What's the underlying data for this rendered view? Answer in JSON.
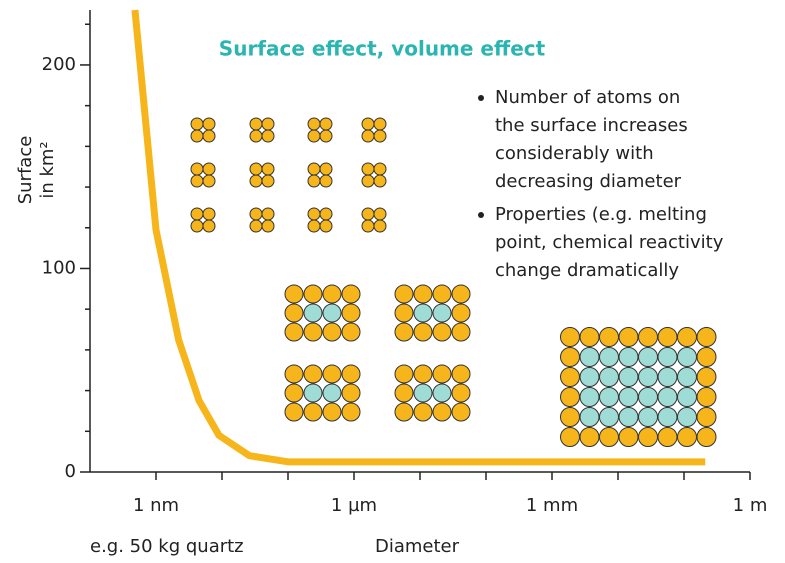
{
  "chart_data": {
    "type": "line",
    "title": "Surface effect, volume effect",
    "y_label": [
      "Surface",
      "in km²"
    ],
    "x_label": "Diameter",
    "x_note": "e.g. 50 kg quartz",
    "annotations": [
      [
        "Number of atoms on",
        "the surface increases",
        "considerably with",
        "decreasing diameter"
      ],
      [
        "Properties (e.g. melting",
        "point, chemical reactivity",
        "change dramatically"
      ]
    ],
    "x_log": true,
    "xlim": [
      1e-10,
      1
    ],
    "ylim": [
      0,
      227
    ],
    "xticks": [
      {
        "value": 1e-09,
        "label": "1 nm"
      },
      {
        "value": 1e-06,
        "label": "1 µm"
      },
      {
        "value": 0.001,
        "label": "1 mm"
      },
      {
        "value": 1,
        "label": "1 m"
      }
    ],
    "xminorticks": [
      1e-08,
      1e-07,
      1e-05,
      0.0001,
      0.01,
      0.1
    ],
    "yticks": [
      0,
      100,
      200
    ],
    "yminorticks": [
      20,
      40,
      60,
      80,
      120,
      140,
      160,
      180,
      220
    ],
    "series": [
      {
        "color": "#f7b51c",
        "x": [
          4.8e-10,
          1e-09,
          2.2e-09,
          4.5e-09,
          9e-09,
          2.6e-08,
          1e-07,
          0.21
        ],
        "values": [
          227,
          119,
          65,
          35,
          18,
          8,
          5,
          5
        ]
      }
    ]
  }
}
